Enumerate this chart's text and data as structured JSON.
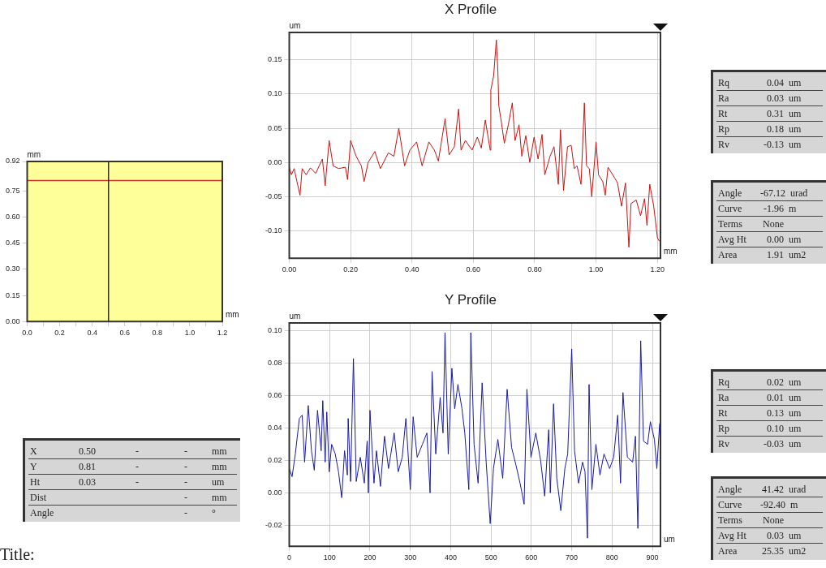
{
  "chart_data": [
    {
      "type": "line",
      "xlabel": "mm",
      "ylabel": "mm",
      "xlim": [
        0,
        1.2
      ],
      "ylim": [
        0,
        0.92
      ],
      "xticks": [
        {
          "value": 0,
          "label": "0.0"
        },
        {
          "value": 0.1,
          "label": null
        },
        {
          "value": 0.2,
          "label": "0.2"
        },
        {
          "value": 0.3,
          "label": null
        },
        {
          "value": 0.4,
          "label": "0.4"
        },
        {
          "value": 0.5,
          "label": null
        },
        {
          "value": 0.6,
          "label": "0.6"
        },
        {
          "value": 0.7,
          "label": null
        },
        {
          "value": 0.8,
          "label": "0.8"
        },
        {
          "value": 0.9,
          "label": null
        },
        {
          "value": 1,
          "label": "1.0"
        },
        {
          "value": 1.1,
          "label": null
        },
        {
          "value": 1.2,
          "label": "1.2"
        }
      ],
      "yticks": [
        {
          "value": 0,
          "label": "0.00"
        },
        {
          "value": 0.15,
          "label": "0.15"
        },
        {
          "value": 0.3,
          "label": "0.30"
        },
        {
          "value": 0.45,
          "label": "0.45"
        },
        {
          "value": 0.6,
          "label": "0.60"
        },
        {
          "value": 0.75,
          "label": "0.75"
        },
        {
          "value": 0.92,
          "label": "0.92"
        }
      ],
      "grid": false,
      "bands": [
        {
          "axis": "x",
          "from": 0,
          "to": 1.2,
          "color": "#ffff99"
        }
      ],
      "ref_lines": [
        {
          "axis": "y",
          "value": 0.81,
          "color": "#c0392b"
        },
        {
          "axis": "x",
          "value": 0.5,
          "color": "#2a2a40"
        }
      ]
    },
    {
      "type": "line",
      "title": "X Profile",
      "xlabel": "mm",
      "ylabel": "um",
      "xlim": [
        0,
        1.21
      ],
      "ylim": [
        -0.14,
        0.19
      ],
      "grid": true,
      "marker": "none",
      "xticks": [
        {
          "value": 0,
          "label": "0.00"
        },
        {
          "value": 0.2,
          "label": "0.20"
        },
        {
          "value": 0.4,
          "label": "0.40"
        },
        {
          "value": 0.6,
          "label": "0.60"
        },
        {
          "value": 0.8,
          "label": "0.80"
        },
        {
          "value": 1,
          "label": "1.00"
        },
        {
          "value": 1.2,
          "label": "1.20"
        }
      ],
      "yticks": [
        {
          "value": -0.1,
          "label": "-0.10"
        },
        {
          "value": -0.05,
          "label": "-0.05"
        },
        {
          "value": 0,
          "label": "0.00"
        },
        {
          "value": 0.05,
          "label": "0.05"
        },
        {
          "value": 0.1,
          "label": "0.10"
        },
        {
          "value": 0.15,
          "label": "0.15"
        }
      ],
      "series": [
        {
          "color": "#cc1111",
          "x": [
            0,
            0.007,
            0.016,
            0.025,
            0.035,
            0.042,
            0.055,
            0.069,
            0.086,
            0.108,
            0.117,
            0.13,
            0.143,
            0.161,
            0.183,
            0.19,
            0.2,
            0.218,
            0.235,
            0.244,
            0.257,
            0.279,
            0.297,
            0.323,
            0.341,
            0.357,
            0.376,
            0.393,
            0.415,
            0.433,
            0.455,
            0.473,
            0.486,
            0.508,
            0.521,
            0.538,
            0.552,
            0.56,
            0.574,
            0.596,
            0.613,
            0.626,
            0.639,
            0.655,
            0.657,
            0.666,
            0.675,
            0.68,
            0.683,
            0.692,
            0.701,
            0.714,
            0.727,
            0.736,
            0.749,
            0.758,
            0.771,
            0.784,
            0.798,
            0.811,
            0.824,
            0.833,
            0.85,
            0.863,
            0.877,
            0.884,
            0.894,
            0.907,
            0.919,
            0.929,
            0.938,
            0.951,
            0.962,
            0.969,
            0.978,
            0.986,
            1.0,
            1.008,
            1.022,
            1.03,
            1.039,
            1.061,
            1.07,
            1.083,
            1.096,
            1.107,
            1.114,
            1.131,
            1.145,
            1.158,
            1.166,
            1.175,
            1.188,
            1.2,
            1.206
          ],
          "values": [
            -0.007,
            -0.018,
            -0.009,
            -0.028,
            -0.048,
            -0.009,
            -0.018,
            -0.008,
            -0.016,
            0.005,
            -0.034,
            0.032,
            -0.005,
            -0.009,
            -0.007,
            -0.025,
            0.032,
            0.009,
            -0.005,
            -0.028,
            0.0,
            0.016,
            -0.009,
            0.014,
            0.009,
            0.05,
            -0.005,
            0.018,
            0.03,
            -0.005,
            0.03,
            0.018,
            0.002,
            0.064,
            0.011,
            0.023,
            0.078,
            0.018,
            0.032,
            0.018,
            0.037,
            0.021,
            0.062,
            0.018,
            0.106,
            0.126,
            0.179,
            0.133,
            0.083,
            0.057,
            0.028,
            0.055,
            0.087,
            0.032,
            0.055,
            0.009,
            0.039,
            0.0,
            0.037,
            0.005,
            0.041,
            -0.018,
            0.009,
            0.023,
            -0.032,
            0.048,
            -0.041,
            0.023,
            0.025,
            -0.009,
            -0.005,
            -0.032,
            0.087,
            -0.005,
            -0.009,
            -0.05,
            0.03,
            -0.018,
            -0.028,
            -0.048,
            -0.007,
            -0.023,
            -0.03,
            -0.064,
            -0.03,
            -0.124,
            -0.06,
            -0.055,
            -0.078,
            -0.053,
            -0.092,
            -0.032,
            -0.064,
            -0.11,
            -0.115
          ]
        }
      ]
    },
    {
      "type": "line",
      "title": "Y Profile",
      "xlabel": "um",
      "ylabel": "um",
      "xlim": [
        0,
        920
      ],
      "ylim": [
        -0.033,
        0.105
      ],
      "grid": true,
      "marker": "none",
      "xticks": [
        0,
        100,
        200,
        300,
        400,
        500,
        600,
        700,
        800,
        900
      ],
      "yticks": [
        {
          "value": -0.02,
          "label": "-0.02"
        },
        {
          "value": 0,
          "label": "0.00"
        },
        {
          "value": 0.02,
          "label": "0.02"
        },
        {
          "value": 0.04,
          "label": "0.04"
        },
        {
          "value": 0.06,
          "label": "0.06"
        },
        {
          "value": 0.08,
          "label": "0.08"
        },
        {
          "value": 0.1,
          "label": "0.10"
        }
      ],
      "series": [
        {
          "color": "#1a1aa6",
          "x": [
            0,
            7,
            15,
            25,
            32,
            38,
            47,
            55,
            62,
            70,
            79,
            83,
            89,
            93,
            99,
            105,
            114,
            122,
            130,
            137,
            144,
            146,
            152,
            159,
            166,
            176,
            186,
            193,
            196,
            200,
            210,
            216,
            226,
            236,
            246,
            260,
            270,
            280,
            289,
            300,
            307,
            317,
            330,
            341,
            349,
            354,
            363,
            374,
            381,
            386,
            394,
            403,
            410,
            418,
            428,
            435,
            445,
            450,
            458,
            468,
            478,
            488,
            498,
            506,
            517,
            529,
            540,
            551,
            562,
            572,
            582,
            589,
            599,
            611,
            623,
            633,
            643,
            647,
            655,
            663,
            673,
            683,
            690,
            700,
            707,
            717,
            727,
            733,
            739,
            743,
            750,
            760,
            770,
            780,
            794,
            804,
            814,
            821,
            827,
            838,
            851,
            858,
            864,
            871,
            878,
            888,
            895,
            905,
            911,
            918
          ],
          "values": [
            0.015,
            0.01,
            0.024,
            0.046,
            0.048,
            0.019,
            0.054,
            0.026,
            0.014,
            0.051,
            0.026,
            0.057,
            0.019,
            0.05,
            0.013,
            0.03,
            0.024,
            0.013,
            -0.003,
            0.026,
            0.011,
            0.046,
            0.007,
            0.083,
            0.007,
            0.022,
            0.006,
            0.032,
            0.0,
            0.051,
            0.006,
            0.026,
            0.004,
            0.035,
            0.015,
            0.037,
            0.013,
            0.022,
            0.046,
            0.002,
            0.047,
            0.022,
            0.03,
            0.037,
            0.0,
            0.075,
            0.024,
            0.059,
            0.037,
            0.099,
            0.024,
            0.077,
            0.052,
            0.067,
            0.052,
            0.037,
            0.002,
            0.099,
            0.03,
            0.006,
            0.068,
            0.019,
            -0.019,
            0.015,
            0.033,
            0.009,
            0.064,
            0.028,
            0.017,
            0.006,
            -0.007,
            0.064,
            0.022,
            0.037,
            0.02,
            -0.002,
            0.039,
            0.0,
            0.055,
            0.009,
            -0.011,
            0.015,
            0.024,
            0.089,
            0.026,
            0.006,
            0.019,
            0.013,
            -0.028,
            0.067,
            0.002,
            0.03,
            0.011,
            0.024,
            0.015,
            0.022,
            0.048,
            0.006,
            0.062,
            0.022,
            0.019,
            0.035,
            -0.022,
            0.094,
            0.032,
            0.03,
            0.044,
            0.033,
            0.015,
            0.043
          ]
        }
      ]
    },
    {
      "type": "other",
      "annotations": [
        "X\t0.50\t-\t-\tmm",
        "Y\t0.81\t-\t-\tmm",
        "Ht\t0.03\t-\t-\tum",
        "Dist\t\t\t-\tmm",
        "Angle\t\t\t-\t°"
      ]
    },
    {
      "type": "other",
      "annotations": [
        "Title:"
      ]
    },
    {
      "type": "other",
      "annotations": [
        "Rq\t0.04\tum",
        "Ra\t0.03\tum",
        "Rt\t0.31\tum",
        "Rp\t0.18\tum",
        "Rv\t-0.13\tum"
      ]
    },
    {
      "type": "other",
      "annotations": [
        "Angle\t-67.12\turad",
        "Curve\t-1.96\tm",
        "Terms\tNone\t",
        "Avg Ht\t0.00\tum",
        "Area\t1.91\tum2"
      ]
    },
    {
      "type": "other",
      "annotations": [
        "Rq\t0.02\tum",
        "Ra\t0.01\tum",
        "Rt\t0.13\tum",
        "Rp\t0.10\tum",
        "Rv\t-0.03\tum"
      ]
    },
    {
      "type": "other",
      "annotations": [
        "Angle\t41.42\turad",
        "Curve\t-92.40\tm",
        "Terms\tNone\t",
        "Avg Ht\t0.03\tum",
        "Area\t25.35\tum2"
      ]
    }
  ]
}
